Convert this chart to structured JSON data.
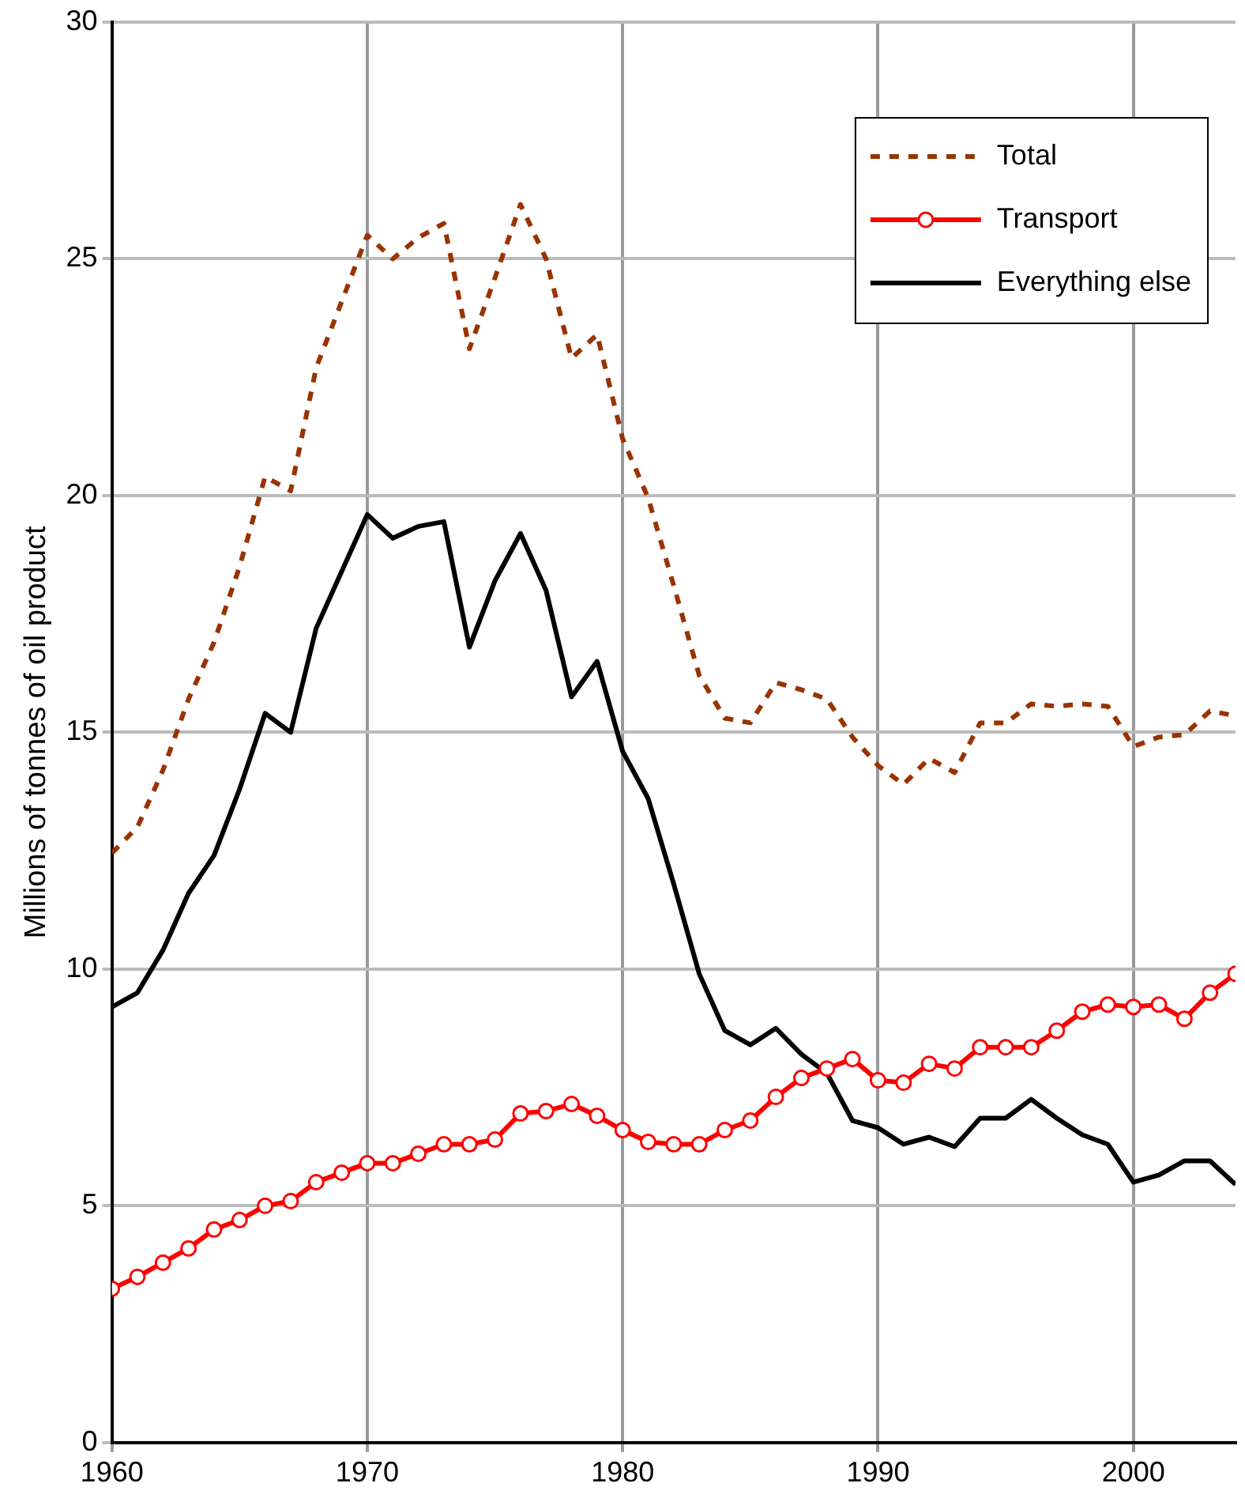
{
  "chart_data": {
    "type": "line",
    "ylabel": "Millions of tonnes of oil product",
    "x": [
      1960,
      1961,
      1962,
      1963,
      1964,
      1965,
      1966,
      1967,
      1968,
      1969,
      1970,
      1971,
      1972,
      1973,
      1974,
      1975,
      1976,
      1977,
      1978,
      1979,
      1980,
      1981,
      1982,
      1983,
      1984,
      1985,
      1986,
      1987,
      1988,
      1989,
      1990,
      1991,
      1992,
      1993,
      1994,
      1995,
      1996,
      1997,
      1998,
      1999,
      2000,
      2001,
      2002,
      2003,
      2004
    ],
    "series": [
      {
        "name": "Total",
        "color": "#993300",
        "line_style": "dashed",
        "marker": "none",
        "values": [
          12.45,
          13.0,
          14.2,
          15.7,
          16.9,
          18.5,
          20.4,
          20.1,
          22.7,
          24.1,
          25.5,
          25.0,
          25.45,
          25.75,
          23.1,
          24.6,
          26.15,
          25.0,
          22.9,
          23.4,
          21.2,
          19.95,
          18.1,
          16.2,
          15.3,
          15.2,
          16.05,
          15.9,
          15.7,
          14.9,
          14.3,
          13.9,
          14.45,
          14.15,
          15.2,
          15.2,
          15.6,
          15.55,
          15.6,
          15.55,
          14.7,
          14.9,
          14.95,
          15.45,
          15.35
        ]
      },
      {
        "name": "Transport",
        "color": "#ff0000",
        "line_style": "solid",
        "marker": "circle",
        "values": [
          3.25,
          3.5,
          3.8,
          4.1,
          4.5,
          4.7,
          5.0,
          5.1,
          5.5,
          5.7,
          5.9,
          5.9,
          6.1,
          6.3,
          6.3,
          6.4,
          6.95,
          7.0,
          7.15,
          6.9,
          6.6,
          6.35,
          6.3,
          6.3,
          6.6,
          6.8,
          7.3,
          7.7,
          7.9,
          8.1,
          7.65,
          7.6,
          8.0,
          7.9,
          8.35,
          8.35,
          8.35,
          8.7,
          9.1,
          9.25,
          9.2,
          9.25,
          8.95,
          9.5,
          9.9
        ]
      },
      {
        "name": "Everything else",
        "color": "#000000",
        "line_style": "solid",
        "marker": "none",
        "values": [
          9.2,
          9.5,
          10.4,
          11.6,
          12.4,
          13.8,
          15.4,
          15.0,
          17.2,
          18.4,
          19.6,
          19.1,
          19.35,
          19.45,
          16.8,
          18.2,
          19.2,
          18.0,
          15.75,
          16.5,
          14.6,
          13.6,
          11.8,
          9.9,
          8.7,
          8.4,
          8.75,
          8.2,
          7.8,
          6.8,
          6.65,
          6.3,
          6.45,
          6.25,
          6.85,
          6.85,
          7.25,
          6.85,
          6.5,
          6.3,
          5.5,
          5.65,
          5.95,
          5.95,
          5.45
        ]
      }
    ],
    "xlim": [
      1960,
      2004
    ],
    "xticks": [
      1960,
      1970,
      1980,
      1990,
      2000
    ],
    "ylim": [
      0,
      30
    ],
    "yticks": [
      0,
      5,
      10,
      15,
      20,
      25,
      30
    ],
    "grid": true,
    "legend": "top right"
  }
}
